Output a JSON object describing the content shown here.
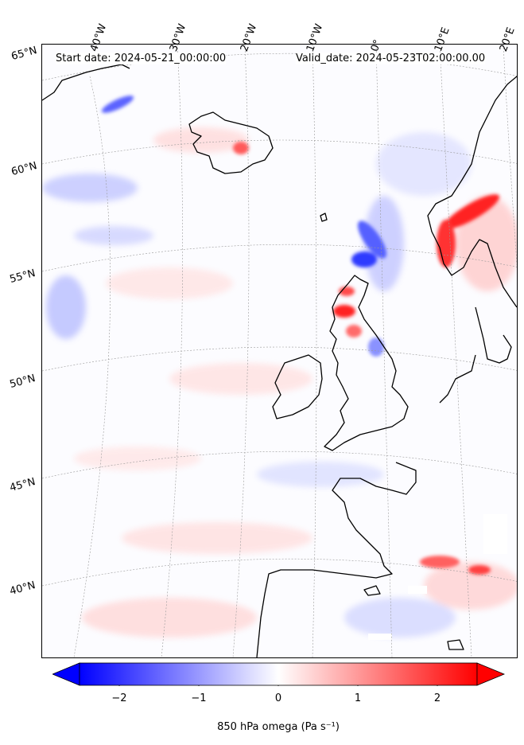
{
  "map": {
    "start_label": "Start date: 2024-05-21_00:00:00",
    "valid_label": "Valid_date: 2024-05-23T02:00:00.00",
    "longitude_labels": [
      "40°W",
      "30°W",
      "20°W",
      "10°W",
      "0°",
      "10°E",
      "20°E"
    ],
    "latitude_labels": [
      "65°N",
      "60°N",
      "55°N",
      "50°N",
      "45°N",
      "40°N"
    ],
    "gridlines": true,
    "field": "850 hPa omega",
    "notable_features": [
      "strong ascent (blue) west of Norway",
      "strong descent (red) over Scotland and southern Norway",
      "mixed signals over Iceland and Iberia"
    ]
  },
  "colorbar": {
    "title": "850 hPa omega (Pa s⁻¹)",
    "ticks": [
      "−2",
      "−1",
      "0",
      "1",
      "2"
    ],
    "tick_values": [
      -2,
      -1,
      0,
      1,
      2
    ],
    "range": [
      -2.5,
      2.5
    ],
    "colormap": "bwr",
    "low_color": "#0000ff",
    "mid_color": "#ffffff",
    "high_color": "#ff0000",
    "extend": "both"
  }
}
